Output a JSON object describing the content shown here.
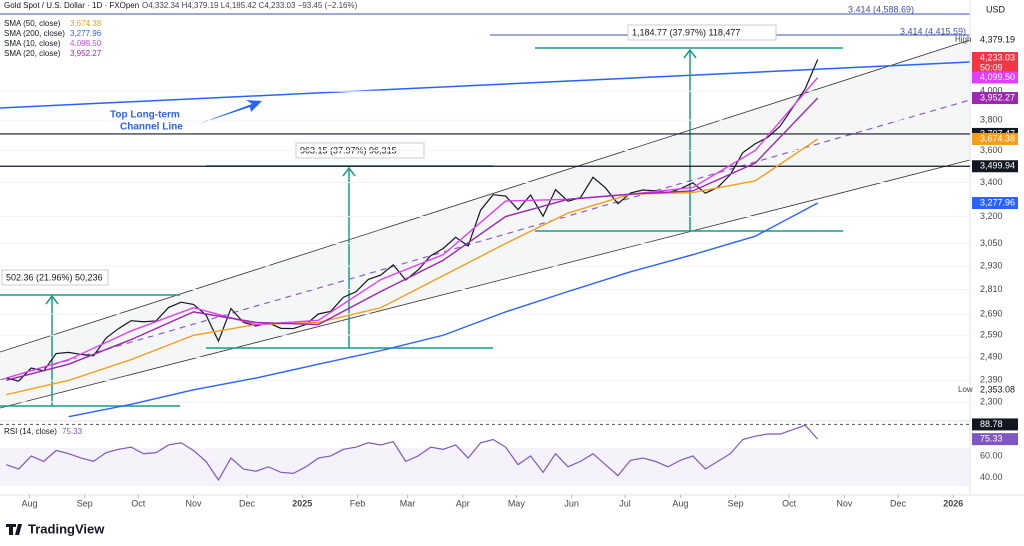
{
  "header": {
    "symbol": "Gold Spot / U.S. Dollar · 1D · FXOpen",
    "ohlc": "O4,332.34 H4,379.19 L4,185.42 C4,233.03 −93.45 (−2.16%)",
    "currency": "USD",
    "brand": "TradingView"
  },
  "annotations": {
    "channel": "Top Long-term",
    "channel2": "Channel Line",
    "measure1": "502.36 (21.96%) 50,236",
    "measure2": "963.15 (37.97%) 96,315",
    "measure3": "1,184.77 (37.97%) 118,477",
    "fib1": "3.414 (4,588.69)",
    "fib2": "3.414 (4,415.59)"
  },
  "price_tags": {
    "high_label": "High",
    "high": "4,379.19",
    "last": "4,233.03",
    "countdown": "50:09",
    "low_label": "Low",
    "low": "2,353.08"
  },
  "chart_data": [
    {
      "type": "line",
      "log_scale": true,
      "xlim": [
        -0.5,
        77.2
      ],
      "ylim": [
        2227,
        4640
      ],
      "xticks": [
        {
          "value": 1.86,
          "label": "Aug"
        },
        {
          "value": 6.29,
          "label": "Sep"
        },
        {
          "value": 10.57,
          "label": "Oct"
        },
        {
          "value": 15,
          "label": "Nov"
        },
        {
          "value": 19.29,
          "label": "Dec"
        },
        {
          "value": 23.71,
          "label": "2025"
        },
        {
          "value": 28.14,
          "label": "Feb"
        },
        {
          "value": 32.14,
          "label": "Mar"
        },
        {
          "value": 36.57,
          "label": "Apr"
        },
        {
          "value": 40.86,
          "label": "May"
        },
        {
          "value": 45.29,
          "label": "Jun"
        },
        {
          "value": 49.57,
          "label": "Jul"
        },
        {
          "value": 54,
          "label": "Aug"
        },
        {
          "value": 58.43,
          "label": "Sep"
        },
        {
          "value": 62.71,
          "label": "Oct"
        },
        {
          "value": 67.14,
          "label": "Nov"
        },
        {
          "value": 71.43,
          "label": "Dec"
        },
        {
          "value": 75.86,
          "label": "2026"
        }
      ],
      "yticks": [
        {
          "value": 2300,
          "label": "2,300"
        },
        {
          "value": 2390,
          "label": "2,390"
        },
        {
          "value": 2490,
          "label": "2,490"
        },
        {
          "value": 2590,
          "label": "2,590"
        },
        {
          "value": 2690,
          "label": "2,690"
        },
        {
          "value": 2810,
          "label": "2,810"
        },
        {
          "value": 2930,
          "label": "2,930"
        },
        {
          "value": 3050,
          "label": "3,050"
        },
        {
          "value": 3200,
          "label": "3,200"
        },
        {
          "value": 3400,
          "label": "3,400"
        },
        {
          "value": 3600,
          "label": "3,600"
        },
        {
          "value": 3800,
          "label": "3,800"
        },
        {
          "value": 4000,
          "label": "4,000"
        }
      ],
      "hlines": [
        {
          "value": 3707.47,
          "label": "3,707.47"
        },
        {
          "value": 3499.94,
          "label": "3,499.94"
        }
      ],
      "series": [
        {
          "name": "Gold Spot",
          "color": "#131722",
          "x": [
            0,
            1,
            2,
            3,
            4,
            5,
            6,
            7,
            8,
            9,
            10,
            11,
            12,
            13,
            14,
            15,
            16,
            17,
            18,
            19,
            20,
            21,
            22,
            23,
            24,
            25,
            26,
            27,
            28,
            29,
            30,
            31,
            32,
            33,
            34,
            35,
            36,
            37,
            38,
            39,
            40,
            41,
            42,
            43,
            44,
            45,
            46,
            47,
            48,
            49,
            50,
            51,
            52,
            53,
            54,
            55,
            56,
            57,
            58,
            59,
            60,
            61,
            62,
            63,
            64,
            65
          ],
          "values": [
            2400,
            2387,
            2443,
            2431,
            2507,
            2512,
            2503,
            2497,
            2577,
            2621,
            2658,
            2653,
            2657,
            2721,
            2747,
            2736,
            2685,
            2563,
            2716,
            2650,
            2633,
            2648,
            2622,
            2621,
            2640,
            2690,
            2703,
            2771,
            2798,
            2861,
            2883,
            2936,
            2858,
            2910,
            2984,
            3023,
            3084,
            3037,
            3237,
            3327,
            3319,
            3240,
            3325,
            3202,
            3357,
            3289,
            3310,
            3432,
            3368,
            3274,
            3337,
            3355,
            3350,
            3337,
            3363,
            3398,
            3336,
            3371,
            3448,
            3586,
            3643,
            3685,
            3760,
            3886,
            4018,
            4233.03
          ]
        },
        {
          "name": "SMA (50, close)",
          "last_label": "3,674.38",
          "color": "#f59d1c",
          "x": [
            0,
            5,
            10,
            15,
            20,
            25,
            30,
            35,
            40,
            45,
            50,
            55,
            60,
            65
          ],
          "values": [
            2330,
            2390,
            2480,
            2590,
            2640,
            2650,
            2720,
            2880,
            3050,
            3220,
            3330,
            3340,
            3410,
            3674.38
          ]
        },
        {
          "name": "SMA (200, close)",
          "last_label": "3,277.96",
          "color": "#2962ff",
          "x": [
            5,
            10,
            15,
            20,
            25,
            30,
            35,
            40,
            45,
            50,
            55,
            60,
            65
          ],
          "values": [
            2240,
            2290,
            2350,
            2400,
            2460,
            2520,
            2590,
            2700,
            2800,
            2900,
            2990,
            3090,
            3277.96
          ]
        },
        {
          "name": "SMA (10, close)",
          "last_label": "4,099.50",
          "color": "#e040fb",
          "x": [
            0,
            5,
            10,
            15,
            20,
            25,
            30,
            35,
            40,
            45,
            50,
            55,
            60,
            65
          ],
          "values": [
            2400,
            2480,
            2610,
            2720,
            2640,
            2660,
            2860,
            2990,
            3290,
            3300,
            3330,
            3370,
            3600,
            4099.5
          ]
        },
        {
          "name": "SMA (20, close)",
          "last_label": "3,952.27",
          "color": "#9c27b0",
          "x": [
            0,
            5,
            10,
            15,
            20,
            25,
            30,
            35,
            40,
            45,
            50,
            55,
            60,
            65
          ],
          "values": [
            2390,
            2460,
            2570,
            2700,
            2650,
            2640,
            2800,
            2960,
            3200,
            3300,
            3330,
            3350,
            3520,
            3952.27
          ]
        }
      ]
    },
    {
      "type": "line",
      "xlim": [
        -0.5,
        77.2
      ],
      "ylim": [
        27,
        91
      ],
      "yticks": [
        {
          "value": 60,
          "label": "60.00"
        },
        {
          "value": 40,
          "label": "40.00"
        }
      ],
      "max_label": {
        "value": 88.78,
        "label": "88.78"
      },
      "series": [
        {
          "name": "RSI (14, close)",
          "last_label": "75.33",
          "color": "#7e57c2",
          "x": [
            0,
            1,
            2,
            3,
            4,
            5,
            6,
            7,
            8,
            9,
            10,
            11,
            12,
            13,
            14,
            15,
            16,
            17,
            18,
            19,
            20,
            21,
            22,
            23,
            24,
            25,
            26,
            27,
            28,
            29,
            30,
            31,
            32,
            33,
            34,
            35,
            36,
            37,
            38,
            39,
            40,
            41,
            42,
            43,
            44,
            45,
            46,
            47,
            48,
            49,
            50,
            51,
            52,
            53,
            54,
            55,
            56,
            57,
            58,
            59,
            60,
            61,
            62,
            63,
            64,
            65
          ],
          "values": [
            52,
            48,
            60,
            55,
            65,
            62,
            58,
            55,
            63,
            66,
            68,
            62,
            63,
            70,
            72,
            65,
            55,
            38,
            58,
            48,
            46,
            50,
            45,
            44,
            50,
            58,
            60,
            66,
            68,
            72,
            70,
            73,
            55,
            60,
            68,
            66,
            70,
            58,
            72,
            75,
            68,
            52,
            60,
            45,
            62,
            50,
            55,
            62,
            52,
            42,
            56,
            58,
            55,
            50,
            56,
            60,
            48,
            55,
            62,
            75,
            78,
            80,
            80,
            84,
            88,
            75.33
          ]
        }
      ]
    }
  ]
}
